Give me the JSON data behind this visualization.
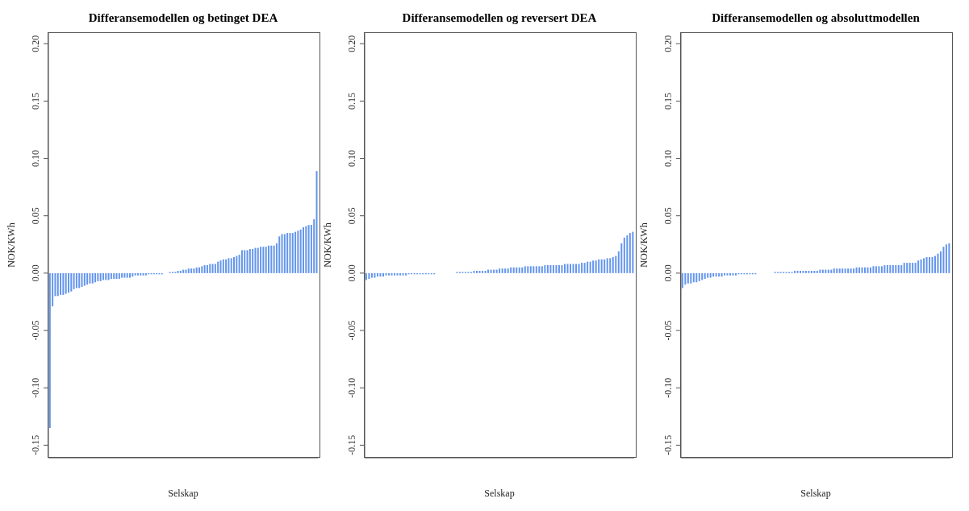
{
  "chart_data": [
    {
      "type": "bar",
      "title": "Differansemodellen og betinget DEA",
      "xlabel": "Selskap",
      "ylabel": "NOK/KWh",
      "color": "#6495ed",
      "grid": false,
      "values": [
        -0.135,
        -0.029,
        -0.02,
        -0.02,
        -0.019,
        -0.019,
        -0.018,
        -0.017,
        -0.016,
        -0.014,
        -0.013,
        -0.013,
        -0.012,
        -0.011,
        -0.01,
        -0.009,
        -0.009,
        -0.008,
        -0.007,
        -0.007,
        -0.006,
        -0.006,
        -0.006,
        -0.005,
        -0.005,
        -0.005,
        -0.005,
        -0.004,
        -0.004,
        -0.004,
        -0.004,
        -0.003,
        -0.002,
        -0.002,
        -0.002,
        -0.002,
        -0.002,
        -0.001,
        -0.001,
        -0.001,
        -0.001,
        -0.001,
        -0.001,
        0.0,
        0.0,
        0.001,
        0.001,
        0.001,
        0.002,
        0.002,
        0.003,
        0.003,
        0.004,
        0.004,
        0.004,
        0.005,
        0.005,
        0.006,
        0.007,
        0.007,
        0.008,
        0.008,
        0.008,
        0.01,
        0.011,
        0.012,
        0.012,
        0.013,
        0.013,
        0.014,
        0.015,
        0.016,
        0.02,
        0.02,
        0.02,
        0.021,
        0.021,
        0.022,
        0.022,
        0.023,
        0.023,
        0.023,
        0.024,
        0.024,
        0.024,
        0.026,
        0.032,
        0.034,
        0.034,
        0.035,
        0.035,
        0.035,
        0.036,
        0.037,
        0.038,
        0.04,
        0.041,
        0.042,
        0.042,
        0.047,
        0.089
      ],
      "categories": [
        null,
        null,
        null,
        null,
        null,
        null,
        null,
        null,
        null,
        null,
        null,
        null,
        null,
        null,
        null,
        null,
        null,
        null,
        null,
        null,
        null,
        null,
        null,
        null,
        null,
        null,
        null,
        null,
        null,
        null,
        null,
        null,
        null,
        null,
        null,
        null,
        null,
        null,
        null,
        null,
        null,
        null,
        null,
        null,
        null,
        null,
        null,
        null,
        null,
        null,
        null,
        null,
        null,
        null,
        null,
        null,
        null,
        null,
        null,
        null,
        null,
        null,
        null,
        null,
        null,
        null,
        null,
        null,
        null,
        null,
        null,
        null,
        null,
        null,
        null,
        null,
        null,
        null,
        null,
        null,
        null,
        null,
        null,
        null,
        null,
        null,
        null,
        null,
        null,
        null,
        null,
        null,
        null,
        null,
        null,
        null,
        null,
        null,
        null,
        null,
        null
      ],
      "ylim": [
        -0.161,
        0.21
      ],
      "yticks": [
        {
          "value": -0.15,
          "label": "-0.15"
        },
        {
          "value": -0.1,
          "label": "-0.10"
        },
        {
          "value": -0.05,
          "label": "-0.05"
        },
        {
          "value": 0,
          "label": "0.00"
        },
        {
          "value": 0.05,
          "label": "0.05"
        },
        {
          "value": 0.1,
          "label": "0.10"
        },
        {
          "value": 0.15,
          "label": "0.15"
        },
        {
          "value": 0.2,
          "label": "0.20"
        }
      ]
    },
    {
      "type": "bar",
      "title": "Differansemodellen og reversert DEA",
      "xlabel": "Selskap",
      "ylabel": "NOK/KWh",
      "color": "#6495ed",
      "grid": false,
      "values": [
        -0.006,
        -0.005,
        -0.004,
        -0.004,
        -0.003,
        -0.003,
        -0.003,
        -0.002,
        -0.002,
        -0.002,
        -0.002,
        -0.002,
        -0.002,
        -0.002,
        -0.002,
        -0.001,
        -0.001,
        -0.001,
        -0.001,
        -0.001,
        -0.001,
        -0.001,
        -0.001,
        -0.001,
        -0.001,
        0.0,
        0.0,
        0.0,
        0.0,
        0.0,
        0.0,
        0.0,
        0.001,
        0.001,
        0.001,
        0.001,
        0.001,
        0.001,
        0.002,
        0.002,
        0.002,
        0.002,
        0.002,
        0.003,
        0.003,
        0.003,
        0.003,
        0.004,
        0.004,
        0.004,
        0.004,
        0.005,
        0.005,
        0.005,
        0.005,
        0.005,
        0.006,
        0.006,
        0.006,
        0.006,
        0.006,
        0.006,
        0.006,
        0.007,
        0.007,
        0.007,
        0.007,
        0.007,
        0.007,
        0.007,
        0.008,
        0.008,
        0.008,
        0.008,
        0.008,
        0.008,
        0.009,
        0.009,
        0.01,
        0.01,
        0.011,
        0.011,
        0.012,
        0.012,
        0.012,
        0.013,
        0.013,
        0.014,
        0.015,
        0.019,
        0.026,
        0.031,
        0.033,
        0.035,
        0.036
      ],
      "categories": [
        null,
        null,
        null,
        null,
        null,
        null,
        null,
        null,
        null,
        null,
        null,
        null,
        null,
        null,
        null,
        null,
        null,
        null,
        null,
        null,
        null,
        null,
        null,
        null,
        null,
        null,
        null,
        null,
        null,
        null,
        null,
        null,
        null,
        null,
        null,
        null,
        null,
        null,
        null,
        null,
        null,
        null,
        null,
        null,
        null,
        null,
        null,
        null,
        null,
        null,
        null,
        null,
        null,
        null,
        null,
        null,
        null,
        null,
        null,
        null,
        null,
        null,
        null,
        null,
        null,
        null,
        null,
        null,
        null,
        null,
        null,
        null,
        null,
        null,
        null,
        null,
        null,
        null,
        null,
        null,
        null,
        null,
        null,
        null,
        null,
        null,
        null,
        null,
        null,
        null,
        null,
        null,
        null,
        null,
        null
      ],
      "ylim": [
        -0.161,
        0.21
      ],
      "yticks": [
        {
          "value": -0.15,
          "label": "-0.15"
        },
        {
          "value": -0.1,
          "label": "-0.10"
        },
        {
          "value": -0.05,
          "label": "-0.05"
        },
        {
          "value": 0,
          "label": "0.00"
        },
        {
          "value": 0.05,
          "label": "0.05"
        },
        {
          "value": 0.1,
          "label": "0.10"
        },
        {
          "value": 0.15,
          "label": "0.15"
        },
        {
          "value": 0.2,
          "label": "0.20"
        }
      ]
    },
    {
      "type": "bar",
      "title": "Differansemodellen og absoluttmodellen",
      "xlabel": "Selskap",
      "ylabel": "NOK/KWh",
      "color": "#6495ed",
      "grid": false,
      "values": [
        -0.013,
        -0.01,
        -0.009,
        -0.009,
        -0.008,
        -0.008,
        -0.007,
        -0.006,
        -0.005,
        -0.004,
        -0.004,
        -0.003,
        -0.003,
        -0.003,
        -0.003,
        -0.002,
        -0.002,
        -0.002,
        -0.002,
        -0.002,
        -0.001,
        -0.001,
        -0.001,
        -0.001,
        -0.001,
        -0.001,
        -0.001,
        0.0,
        0.0,
        0.0,
        0.0,
        0.0,
        0.0,
        0.001,
        0.001,
        0.001,
        0.001,
        0.001,
        0.001,
        0.001,
        0.002,
        0.002,
        0.002,
        0.002,
        0.002,
        0.002,
        0.002,
        0.002,
        0.002,
        0.003,
        0.003,
        0.003,
        0.003,
        0.003,
        0.004,
        0.004,
        0.004,
        0.004,
        0.004,
        0.004,
        0.004,
        0.004,
        0.005,
        0.005,
        0.005,
        0.005,
        0.005,
        0.005,
        0.006,
        0.006,
        0.006,
        0.006,
        0.007,
        0.007,
        0.007,
        0.007,
        0.007,
        0.007,
        0.007,
        0.009,
        0.009,
        0.009,
        0.009,
        0.009,
        0.011,
        0.012,
        0.013,
        0.014,
        0.014,
        0.014,
        0.015,
        0.017,
        0.019,
        0.023,
        0.025,
        0.026
      ],
      "categories": [
        null,
        null,
        null,
        null,
        null,
        null,
        null,
        null,
        null,
        null,
        null,
        null,
        null,
        null,
        null,
        null,
        null,
        null,
        null,
        null,
        null,
        null,
        null,
        null,
        null,
        null,
        null,
        null,
        null,
        null,
        null,
        null,
        null,
        null,
        null,
        null,
        null,
        null,
        null,
        null,
        null,
        null,
        null,
        null,
        null,
        null,
        null,
        null,
        null,
        null,
        null,
        null,
        null,
        null,
        null,
        null,
        null,
        null,
        null,
        null,
        null,
        null,
        null,
        null,
        null,
        null,
        null,
        null,
        null,
        null,
        null,
        null,
        null,
        null,
        null,
        null,
        null,
        null,
        null,
        null,
        null,
        null,
        null,
        null,
        null,
        null,
        null,
        null,
        null,
        null,
        null,
        null,
        null,
        null,
        null,
        null
      ],
      "ylim": [
        -0.161,
        0.21
      ],
      "yticks": [
        {
          "value": -0.15,
          "label": "-0.15"
        },
        {
          "value": -0.1,
          "label": "-0.10"
        },
        {
          "value": -0.05,
          "label": "-0.05"
        },
        {
          "value": 0,
          "label": "0.00"
        },
        {
          "value": 0.05,
          "label": "0.05"
        },
        {
          "value": 0.1,
          "label": "0.10"
        },
        {
          "value": 0.15,
          "label": "0.15"
        },
        {
          "value": 0.2,
          "label": "0.20"
        }
      ]
    }
  ]
}
